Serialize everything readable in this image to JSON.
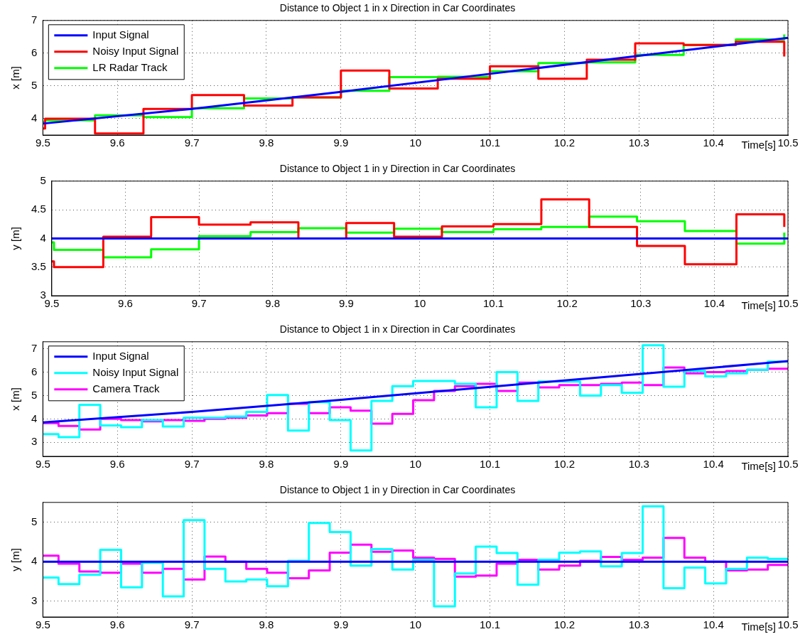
{
  "chart_data": [
    {
      "type": "step",
      "title": "Distance to Object 1 in x Direction in Car Coordinates",
      "xlabel": "Time[s]",
      "ylabel": "x [m]",
      "xlim": [
        9.5,
        10.5
      ],
      "xticks": [
        9.5,
        9.6,
        9.7,
        9.8,
        9.9,
        10,
        10.1,
        10.2,
        10.3,
        10.4,
        10.5
      ],
      "ylim": [
        3.5,
        7
      ],
      "yticks": [
        4,
        5,
        6,
        7
      ],
      "grid": true,
      "legend": "top left",
      "series": [
        {
          "name": "Input Signal",
          "type": "line",
          "color": "#0000ff",
          "x": [
            9.5,
            9.7,
            9.9,
            10.1,
            10.3,
            10.5
          ],
          "values": [
            3.85,
            4.3,
            4.82,
            5.37,
            5.92,
            6.47
          ]
        },
        {
          "name": "Noisy Input Signal",
          "color": "#ff0000",
          "x": [
            9.5,
            9.503,
            9.57,
            9.635,
            9.7,
            9.77,
            9.835,
            9.9,
            9.965,
            10.03,
            10.1,
            10.165,
            10.23,
            10.295,
            10.36,
            10.43,
            10.495
          ],
          "values": [
            3.7,
            4.0,
            3.55,
            4.3,
            4.72,
            4.4,
            4.65,
            5.47,
            4.92,
            5.22,
            5.6,
            5.22,
            5.8,
            6.3,
            6.25,
            6.35,
            5.9
          ]
        },
        {
          "name": "LR Radar Track",
          "color": "#00ff00",
          "x": [
            9.5,
            9.503,
            9.57,
            9.635,
            9.7,
            9.77,
            9.835,
            9.9,
            9.965,
            10.03,
            10.1,
            10.165,
            10.23,
            10.295,
            10.36,
            10.43,
            10.495
          ],
          "values": [
            3.9,
            3.95,
            4.1,
            4.05,
            4.32,
            4.62,
            4.65,
            4.85,
            5.27,
            5.28,
            5.45,
            5.7,
            5.72,
            5.95,
            6.25,
            6.42,
            6.57
          ]
        }
      ]
    },
    {
      "type": "step",
      "title": "Distance to Object 1 in y Direction in Car Coordinates",
      "xlabel": "Time[s]",
      "ylabel": "y [m]",
      "xlim": [
        9.5,
        10.5
      ],
      "xticks": [
        9.5,
        9.6,
        9.7,
        9.8,
        9.9,
        10,
        10.1,
        10.2,
        10.3,
        10.4,
        10.5
      ],
      "ylim": [
        3,
        5
      ],
      "yticks": [
        3,
        3.5,
        4,
        4.5,
        5
      ],
      "grid": true,
      "series": [
        {
          "type": "line",
          "color": "#0000ff",
          "x": [
            9.5,
            10.5
          ],
          "values": [
            4,
            4
          ]
        },
        {
          "color": "#ff0000",
          "x": [
            9.5,
            9.503,
            9.57,
            9.635,
            9.7,
            9.77,
            9.835,
            9.9,
            9.965,
            10.03,
            10.1,
            10.165,
            10.23,
            10.295,
            10.36,
            10.43,
            10.495
          ],
          "values": [
            3.6,
            3.5,
            4.03,
            4.37,
            4.24,
            4.28,
            4.0,
            4.27,
            4.03,
            4.21,
            4.25,
            4.68,
            4.2,
            3.87,
            3.55,
            4.42,
            4.2
          ]
        },
        {
          "color": "#00ff00",
          "x": [
            9.5,
            9.503,
            9.57,
            9.635,
            9.7,
            9.77,
            9.835,
            9.9,
            9.965,
            10.03,
            10.1,
            10.165,
            10.23,
            10.295,
            10.36,
            10.43,
            10.495
          ],
          "values": [
            3.93,
            3.8,
            3.67,
            3.81,
            4.04,
            4.11,
            4.18,
            4.1,
            4.17,
            4.11,
            4.16,
            4.2,
            4.38,
            4.3,
            4.13,
            3.91,
            4.1
          ]
        }
      ]
    },
    {
      "type": "step",
      "title": "Distance to Object 1 in x Direction in Car Coordinates",
      "xlabel": "Time[s]",
      "ylabel": "x [m]",
      "xlim": [
        9.5,
        10.5
      ],
      "xticks": [
        9.5,
        9.6,
        9.7,
        9.8,
        9.9,
        10,
        10.1,
        10.2,
        10.3,
        10.4,
        10.5
      ],
      "ylim": [
        2.4,
        7.3
      ],
      "yticks": [
        3,
        4,
        5,
        6,
        7
      ],
      "grid": true,
      "legend": "top left",
      "x": [
        9.5,
        9.521,
        9.549,
        9.577,
        9.605,
        9.633,
        9.661,
        9.689,
        9.717,
        9.745,
        9.773,
        9.801,
        9.829,
        9.857,
        9.885,
        9.913,
        9.941,
        9.969,
        9.997,
        10.025,
        10.053,
        10.081,
        10.109,
        10.137,
        10.165,
        10.193,
        10.221,
        10.249,
        10.277,
        10.305,
        10.333,
        10.361,
        10.389,
        10.417,
        10.445,
        10.473,
        10.5
      ],
      "series": [
        {
          "name": "Input Signal",
          "type": "line",
          "color": "#0000ff",
          "x": [
            9.5,
            9.7,
            9.9,
            10.1,
            10.3,
            10.5
          ],
          "values": [
            3.85,
            4.3,
            4.82,
            5.37,
            5.92,
            6.47
          ]
        },
        {
          "name": "Noisy Input Signal",
          "color": "#00ffff",
          "values": [
            3.35,
            3.22,
            4.6,
            3.72,
            3.65,
            3.95,
            3.68,
            4.05,
            4.05,
            4.1,
            4.3,
            5.02,
            3.5,
            4.72,
            3.95,
            2.65,
            4.77,
            5.4,
            5.62,
            5.62,
            5.5,
            4.5,
            6.0,
            4.77,
            5.6,
            5.6,
            5.0,
            5.45,
            5.12,
            7.15,
            5.38,
            6.05,
            5.82,
            5.95,
            6.1,
            6.45,
            6.45
          ]
        },
        {
          "name": "Camera Track",
          "color": "#ff00ff",
          "values": [
            3.82,
            3.7,
            3.55,
            4.0,
            3.95,
            3.9,
            3.95,
            3.92,
            4.0,
            4.05,
            4.15,
            4.25,
            4.65,
            4.25,
            4.5,
            4.35,
            3.8,
            4.22,
            4.8,
            5.2,
            5.4,
            5.5,
            5.2,
            5.55,
            5.35,
            5.45,
            5.45,
            5.5,
            5.55,
            5.45,
            6.2,
            5.95,
            6.0,
            6.05,
            6.1,
            6.15,
            6.15
          ]
        }
      ]
    },
    {
      "type": "step",
      "title": "Distance to Object 1 in y Direction in Car Coordinates",
      "xlabel": "Time[s]",
      "ylabel": "y [m]",
      "xlim": [
        9.5,
        10.5
      ],
      "xticks": [
        9.5,
        9.6,
        9.7,
        9.8,
        9.9,
        10,
        10.1,
        10.2,
        10.3,
        10.4,
        10.5
      ],
      "ylim": [
        2.6,
        5.5
      ],
      "yticks": [
        3,
        4,
        5
      ],
      "grid": true,
      "x": [
        9.5,
        9.521,
        9.549,
        9.577,
        9.605,
        9.633,
        9.661,
        9.689,
        9.717,
        9.745,
        9.773,
        9.801,
        9.829,
        9.857,
        9.885,
        9.913,
        9.941,
        9.969,
        9.997,
        10.025,
        10.053,
        10.081,
        10.109,
        10.137,
        10.165,
        10.193,
        10.221,
        10.249,
        10.277,
        10.305,
        10.333,
        10.361,
        10.389,
        10.417,
        10.445,
        10.473,
        10.5
      ],
      "series": [
        {
          "type": "line",
          "color": "#0000ff",
          "x": [
            9.5,
            10.5
          ],
          "values": [
            4,
            4
          ]
        },
        {
          "color": "#00ffff",
          "values": [
            3.6,
            3.43,
            3.67,
            4.3,
            3.35,
            3.97,
            3.12,
            5.05,
            3.82,
            3.5,
            3.55,
            3.38,
            4.02,
            4.98,
            4.75,
            3.9,
            4.32,
            3.8,
            4.05,
            2.87,
            3.7,
            4.38,
            4.22,
            3.42,
            4.05,
            4.23,
            4.26,
            3.88,
            4.22,
            5.4,
            3.33,
            3.85,
            3.45,
            3.82,
            4.1,
            4.07,
            4.07
          ]
        },
        {
          "color": "#ff00ff",
          "values": [
            4.15,
            3.95,
            3.75,
            3.72,
            3.95,
            3.72,
            3.82,
            3.55,
            4.13,
            4.0,
            3.82,
            3.72,
            3.58,
            3.78,
            4.23,
            4.43,
            4.25,
            4.28,
            4.1,
            4.07,
            3.62,
            3.65,
            3.95,
            4.05,
            3.8,
            3.9,
            4.02,
            4.12,
            4.05,
            4.1,
            4.6,
            4.1,
            4.0,
            3.78,
            3.8,
            3.92,
            3.92
          ]
        }
      ]
    }
  ]
}
